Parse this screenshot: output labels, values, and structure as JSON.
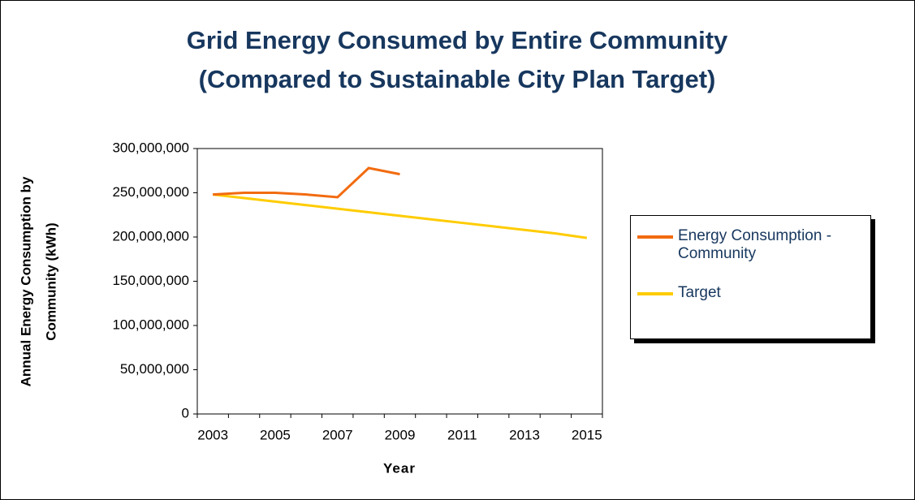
{
  "chart_data": {
    "type": "line",
    "title": [
      "Grid Energy Consumed by Entire Community",
      "(Compared to Sustainable City Plan Target)"
    ],
    "y_label": [
      "Annual Energy Consumption by",
      "Community (kWh)"
    ],
    "x_label": "Year",
    "categories": [
      "2003",
      null,
      "2005",
      null,
      "2007",
      null,
      "2009",
      null,
      "2011",
      null,
      "2013",
      null,
      "2015"
    ],
    "series": [
      {
        "name": "Energy Consumption - Community",
        "color": "#f26b10",
        "values": [
          248000000,
          250000000,
          250000000,
          248000000,
          245000000,
          278000000,
          271000000,
          null,
          null,
          null,
          null,
          null,
          null
        ]
      },
      {
        "name": "Target",
        "color": "#ffcc00",
        "values": [
          248000000,
          244000000,
          240000000,
          236000000,
          232000000,
          228000000,
          224000000,
          220000000,
          216000000,
          212000000,
          208000000,
          204000000,
          199000000
        ]
      }
    ],
    "ylim": [
      0,
      300000000
    ],
    "yticks": [
      0,
      {
        "value": 50000000,
        "label": "50,000,000"
      },
      {
        "value": 100000000,
        "label": "100,000,000"
      },
      {
        "value": 150000000,
        "label": "150,000,000"
      },
      {
        "value": 200000000,
        "label": "200,000,000"
      },
      {
        "value": 250000000,
        "label": "250,000,000"
      },
      {
        "value": 300000000,
        "label": "300,000,000"
      }
    ],
    "grid": false,
    "legend": "right"
  }
}
